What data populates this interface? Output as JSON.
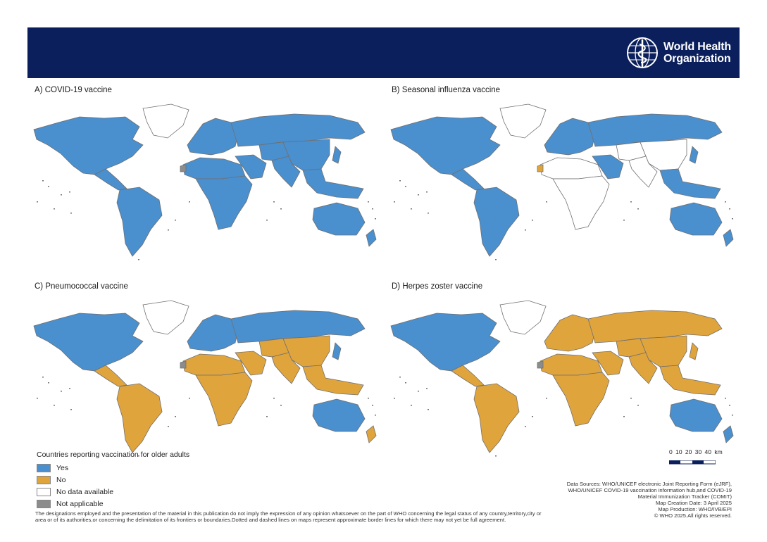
{
  "header": {
    "org_name_line1": "World Health",
    "org_name_line2": "Organization",
    "bg_color": "#0b1f5c"
  },
  "colors": {
    "yes": "#4a8fce",
    "no": "#e0a43c",
    "no_data": "#ffffff",
    "not_applicable": "#8c8c8c",
    "border": "#707070"
  },
  "panels": [
    {
      "id": "A",
      "title": "A) COVID-19 vaccine",
      "regions": {
        "north_america": "yes",
        "greenland": "no_data",
        "central_america": "yes",
        "south_america": "yes",
        "europe": "yes",
        "russia": "yes",
        "middle_east": "yes",
        "africa_north": "yes",
        "africa_sub": "yes",
        "central_asia": "yes",
        "china": "yes",
        "south_asia": "yes",
        "southeast_asia": "yes",
        "japan": "yes",
        "australia": "yes",
        "new_zealand": "yes",
        "western_sahara": "not_applicable"
      }
    },
    {
      "id": "B",
      "title": "B) Seasonal influenza vaccine",
      "regions": {
        "north_america": "yes",
        "greenland": "no_data",
        "central_america": "yes",
        "south_america": "yes",
        "europe": "yes",
        "russia": "yes",
        "middle_east": "yes",
        "africa_north": "no_data",
        "africa_sub": "no_data",
        "central_asia": "no_data",
        "china": "no_data",
        "south_asia": "no_data",
        "southeast_asia": "yes",
        "japan": "yes",
        "australia": "yes",
        "new_zealand": "yes",
        "western_sahara": "no"
      }
    },
    {
      "id": "C",
      "title": "C) Pneumococcal vaccine",
      "regions": {
        "north_america": "yes",
        "greenland": "no_data",
        "central_america": "no",
        "south_america": "no",
        "europe": "yes",
        "russia": "yes",
        "middle_east": "no",
        "africa_north": "no",
        "africa_sub": "no",
        "central_asia": "no",
        "china": "no",
        "south_asia": "no",
        "southeast_asia": "no",
        "japan": "yes",
        "australia": "yes",
        "new_zealand": "no",
        "western_sahara": "not_applicable"
      }
    },
    {
      "id": "D",
      "title": "D) Herpes zoster vaccine",
      "regions": {
        "north_america": "yes",
        "greenland": "no_data",
        "central_america": "no",
        "south_america": "no",
        "europe": "no",
        "russia": "no",
        "middle_east": "no",
        "africa_north": "no",
        "africa_sub": "no",
        "central_asia": "no",
        "china": "no",
        "south_asia": "no",
        "southeast_asia": "no",
        "japan": "no",
        "australia": "yes",
        "new_zealand": "yes",
        "western_sahara": "not_applicable"
      }
    }
  ],
  "legend": {
    "title": "Countries reporting vaccination for older adults",
    "items": [
      {
        "label": "Yes",
        "color": "#4a8fce"
      },
      {
        "label": "No",
        "color": "#e0a43c"
      },
      {
        "label": "No data available",
        "color": "#ffffff"
      },
      {
        "label": "Not applicable",
        "color": "#8c8c8c"
      }
    ]
  },
  "scale_bar": {
    "labels": "0   10   20   30   40 km"
  },
  "sources": {
    "line1": "Data Sources:  WHO/UNICEF electronic Joint Reporting Form (eJRF),",
    "line2": "WHO/UNICEF COVID-19 vaccination information hub,and COVID-19",
    "line3": "Material Immunization Tracker (COMIT)",
    "line4": "Map Creation Date: 3 April 2025",
    "line5": "Map Production: WHO/IVB/EPI",
    "line6": "© WHO 2025.All rights reserved."
  },
  "disclaimer": {
    "line1": "The designations employed and the presentation of the material in this publication do not imply the expression of any opinion whatsoever on the part of WHO concerning the legal status of any country,territory,city or",
    "line2": "area or of its authorities,or concerning the delimitation of its frontiers or boundaries.Dotted and dashed lines on maps represent approximate border lines for which there may not yet be full agreement."
  }
}
